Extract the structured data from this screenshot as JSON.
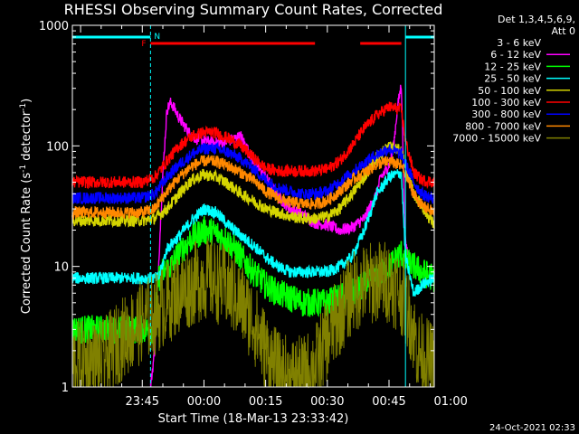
{
  "chart_data": {
    "type": "line",
    "title": "RHESSI Observing Summary Count Rates, Corrected",
    "xlabel": "Start Time (18-Mar-13 23:33:42)",
    "ylabel_main": "Corrected Count Rate (s",
    "ylabel_sup1": "-1",
    "ylabel_mid": " detector",
    "ylabel_sup2": "-1",
    "ylabel_end": ")",
    "yscale": "log",
    "ylim": [
      1,
      1000
    ],
    "xlim_minutes": [
      -17,
      71
    ],
    "x_ticks": [
      {
        "m": 0,
        "label": "23:45"
      },
      {
        "m": 15,
        "label": "00:00"
      },
      {
        "m": 30,
        "label": "00:15"
      },
      {
        "m": 45,
        "label": "00:30"
      },
      {
        "m": 60,
        "label": "00:45"
      },
      {
        "m": 75,
        "label": "01:00"
      }
    ],
    "y_ticks": [
      {
        "v": 1,
        "label": "1"
      },
      {
        "v": 10,
        "label": "10"
      },
      {
        "v": 100,
        "label": "100"
      },
      {
        "v": 1000,
        "label": "1000"
      }
    ],
    "legend_title": "Det 1,3,4,5,6,9,",
    "legend_subtitle": "Att 0",
    "flag_labels": {
      "F": "F",
      "N": "N"
    },
    "timestamp": "24-Oct-2021 02:33",
    "series": [
      {
        "name": "3 - 6 keV",
        "color": "#000000",
        "x": [
          6,
          6.3,
          7,
          9,
          12,
          15,
          18,
          21,
          24,
          27,
          30,
          33,
          36,
          39,
          42,
          45,
          48,
          51,
          54,
          57,
          60,
          63,
          64,
          64.5,
          66
        ],
        "y": [
          20,
          220,
          190,
          165,
          150,
          145,
          140,
          150,
          130,
          95,
          70,
          53,
          46,
          42,
          36,
          33,
          35,
          48,
          55,
          60,
          75,
          80,
          60,
          6,
          1
        ]
      },
      {
        "name": "6 - 12 keV",
        "color": "#ff00ff",
        "x": [
          2,
          3,
          5,
          6,
          7,
          9,
          12,
          15,
          18,
          21,
          24,
          27,
          30,
          33,
          36,
          39,
          42,
          45,
          48,
          51,
          54,
          57,
          58,
          59,
          60,
          61,
          62,
          63,
          64,
          65
        ],
        "y": [
          1,
          2,
          60,
          200,
          230,
          170,
          120,
          110,
          105,
          110,
          120,
          75,
          55,
          38,
          30,
          27,
          23,
          22,
          20,
          21,
          25,
          40,
          55,
          60,
          70,
          90,
          200,
          330,
          15,
          12
        ]
      },
      {
        "name": "12 - 25 keV",
        "color": "#00ff00",
        "x": [
          -17,
          -10,
          0,
          3,
          4,
          5,
          7,
          9,
          12,
          15,
          18,
          21,
          24,
          27,
          30,
          33,
          36,
          39,
          42,
          45,
          48,
          51,
          54,
          57,
          60,
          63,
          64,
          66,
          68,
          71
        ],
        "y": [
          3,
          3,
          3,
          3,
          8,
          9,
          10,
          13,
          17,
          20,
          19,
          16,
          12,
          9,
          7,
          6,
          5.5,
          5,
          5,
          5,
          5.5,
          6,
          7,
          8,
          10,
          13,
          11,
          10,
          9,
          8
        ]
      },
      {
        "name": "25 - 50 keV",
        "color": "#00ffff",
        "x": [
          -17,
          -10,
          0,
          4,
          6,
          9,
          12,
          15,
          18,
          21,
          24,
          27,
          30,
          33,
          36,
          39,
          42,
          45,
          48,
          51,
          54,
          57,
          60,
          63,
          64,
          66,
          68,
          71
        ],
        "y": [
          8,
          8,
          8,
          8,
          14,
          18,
          24,
          30,
          28,
          22,
          18,
          15,
          12,
          10,
          9,
          9,
          9,
          9,
          10,
          12,
          20,
          40,
          55,
          60,
          12,
          6,
          7,
          8
        ]
      },
      {
        "name": "50 - 100 keV",
        "color": "#d4d400",
        "x": [
          -17,
          -10,
          0,
          3,
          6,
          9,
          12,
          15,
          18,
          21,
          24,
          27,
          30,
          33,
          36,
          39,
          42,
          45,
          48,
          51,
          54,
          57,
          60,
          63,
          66,
          71
        ],
        "y": [
          24,
          24,
          24,
          25,
          30,
          40,
          52,
          58,
          55,
          48,
          40,
          35,
          30,
          28,
          26,
          25,
          25,
          26,
          30,
          40,
          55,
          80,
          100,
          90,
          40,
          22
        ]
      },
      {
        "name": "100 - 300 keV",
        "color": "#ff0000",
        "x": [
          -17,
          -10,
          0,
          3,
          6,
          9,
          12,
          15,
          18,
          21,
          24,
          27,
          30,
          33,
          36,
          39,
          42,
          45,
          48,
          51,
          54,
          57,
          60,
          63,
          64,
          66,
          68,
          71
        ],
        "y": [
          50,
          50,
          50,
          55,
          75,
          100,
          120,
          130,
          128,
          115,
          100,
          80,
          65,
          62,
          62,
          62,
          62,
          64,
          75,
          100,
          140,
          180,
          210,
          200,
          110,
          60,
          52,
          50
        ]
      },
      {
        "name": "300 - 800 keV",
        "color": "#0000ff",
        "x": [
          -17,
          -10,
          0,
          3,
          6,
          9,
          12,
          15,
          18,
          21,
          24,
          27,
          30,
          33,
          36,
          39,
          42,
          45,
          48,
          51,
          54,
          57,
          60,
          63,
          66,
          68,
          71
        ],
        "y": [
          37,
          37,
          37,
          40,
          55,
          70,
          85,
          95,
          95,
          88,
          78,
          65,
          52,
          45,
          42,
          40,
          40,
          42,
          50,
          60,
          72,
          85,
          95,
          85,
          50,
          40,
          36
        ]
      },
      {
        "name": "800 - 7000 keV",
        "color": "#ff8800",
        "x": [
          -17,
          -10,
          0,
          3,
          6,
          9,
          12,
          15,
          18,
          21,
          24,
          27,
          30,
          33,
          36,
          39,
          42,
          45,
          48,
          51,
          54,
          57,
          60,
          63,
          66,
          68,
          71
        ],
        "y": [
          28,
          28,
          28,
          30,
          42,
          55,
          68,
          75,
          74,
          68,
          60,
          52,
          42,
          37,
          34,
          33,
          33,
          35,
          42,
          52,
          60,
          70,
          75,
          68,
          40,
          32,
          28
        ]
      },
      {
        "name": "7000 - 15000 keV",
        "color": "#808000",
        "x": [
          -17,
          -10,
          -5,
          0,
          3,
          6,
          9,
          12,
          15,
          18,
          21,
          24,
          27,
          30,
          33,
          36,
          39,
          42,
          45,
          48,
          51,
          54,
          57,
          60,
          63,
          65,
          67,
          71
        ],
        "y": [
          1.6,
          1.6,
          2.5,
          3.5,
          4,
          5,
          6,
          7,
          8,
          7.5,
          6.5,
          5,
          3.5,
          2,
          1.3,
          1.2,
          1.2,
          1.5,
          2.5,
          4,
          6,
          7,
          7.5,
          7.5,
          6,
          4,
          2,
          1.5
        ]
      }
    ],
    "flags": {
      "F_red_bars": [
        [
          2,
          42
        ],
        [
          53,
          63
        ]
      ],
      "N_cyan_bars": [
        [
          -17,
          2
        ],
        [
          64,
          71
        ]
      ],
      "vlines_cyan_dashed": [
        2,
        71
      ],
      "vline_cyan_solid": 64
    }
  }
}
